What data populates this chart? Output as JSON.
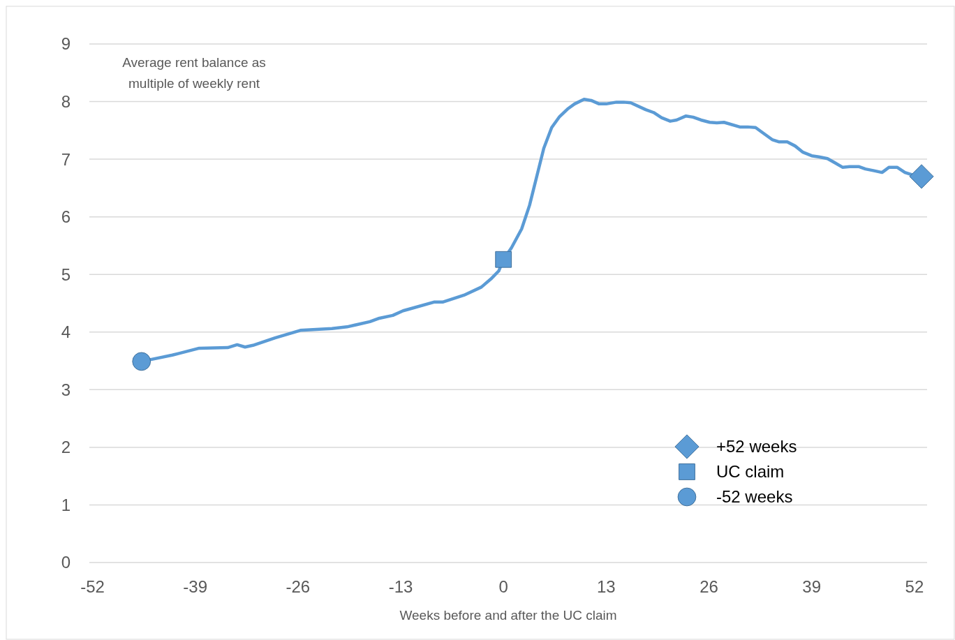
{
  "chart_data": {
    "type": "line",
    "xlabel": "Weeks before and after the UC claim",
    "ylabel": "Average rent balance as multiple of weekly rent",
    "xlim": [
      -52.4,
      53.6
    ],
    "ylim": [
      0,
      9
    ],
    "xticks": [
      -52,
      -39,
      -26,
      -13,
      0,
      13,
      26,
      39,
      52
    ],
    "yticks": [
      0,
      1,
      2,
      3,
      4,
      5,
      6,
      7,
      8,
      9
    ],
    "grid": "y",
    "legend": "bottom right",
    "series": [
      {
        "color": "#5b9bd5",
        "marker": "none",
        "x": [
          -45.8,
          -41.9,
          -38.5,
          -34.9,
          -33.7,
          -32.7,
          -31.7,
          -28.9,
          -25.7,
          -21.7,
          -19.8,
          -16.9,
          -15.7,
          -14.0,
          -12.7,
          -11.9,
          -8.8,
          -7.7,
          -5.0,
          -2.8,
          -1.6,
          -0.6,
          0,
          1.0,
          2.3,
          3.3,
          5.1,
          6.1,
          7.1,
          8.1,
          9.0,
          10.2,
          11.1,
          12.1,
          13.0,
          14.3,
          15.2,
          16.1,
          18.0,
          19.0,
          20.0,
          21.1,
          21.9,
          23.1,
          24.0,
          25.0,
          26.1,
          27.0,
          27.9,
          29.9,
          30.9,
          31.9,
          32.9,
          34.0,
          34.9,
          35.9,
          36.9,
          37.9,
          39.0,
          39.9,
          41.0,
          41.9,
          42.9,
          43.8,
          45.0,
          45.8,
          46.9,
          47.9,
          48.8,
          49.8,
          50.8,
          51.9
        ],
        "values": [
          3.49,
          3.6,
          3.72,
          3.73,
          3.78,
          3.74,
          3.77,
          3.9,
          4.03,
          4.06,
          4.09,
          4.18,
          4.24,
          4.29,
          4.37,
          4.4,
          4.52,
          4.52,
          4.64,
          4.78,
          4.92,
          5.06,
          5.26,
          5.46,
          5.79,
          6.2,
          7.19,
          7.55,
          7.74,
          7.87,
          7.96,
          8.04,
          8.02,
          7.96,
          7.96,
          7.99,
          7.99,
          7.98,
          7.86,
          7.81,
          7.72,
          7.66,
          7.68,
          7.75,
          7.73,
          7.68,
          7.64,
          7.63,
          7.64,
          7.56,
          7.56,
          7.55,
          7.45,
          7.34,
          7.3,
          7.3,
          7.23,
          7.12,
          7.06,
          7.04,
          7.01,
          6.94,
          6.86,
          6.87,
          6.87,
          6.83,
          6.8,
          6.77,
          6.86,
          6.86,
          6.77,
          6.72
        ]
      },
      {
        "type": "scatter",
        "name": "+52 weeks",
        "color": "#5b9bd5",
        "marker": "diamond",
        "x": [
          52.9
        ],
        "values": [
          6.7
        ]
      },
      {
        "type": "scatter",
        "name": "UC claim",
        "color": "#5b9bd5",
        "marker": "square",
        "x": [
          0
        ],
        "values": [
          5.26
        ]
      },
      {
        "type": "scatter",
        "name": "-52 weeks",
        "color": "#5b9bd5",
        "marker": "circle",
        "x": [
          -45.8
        ],
        "values": [
          3.49
        ]
      }
    ]
  }
}
